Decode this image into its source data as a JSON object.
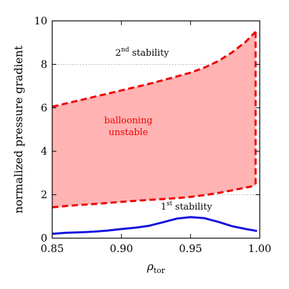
{
  "chart_data": {
    "type": "area",
    "xlabel": "ρ",
    "xlabel_sub": "tor",
    "ylabel": "normalized pressure gradient",
    "xlim": [
      0.85,
      1.0
    ],
    "ylim": [
      0,
      10
    ],
    "xticks": [
      "0.85",
      "0.90",
      "0.95",
      "1.00"
    ],
    "xtick_values": [
      0.85,
      0.9,
      0.95,
      1.0
    ],
    "yticks": [
      "0",
      "2",
      "4",
      "6",
      "8",
      "10"
    ],
    "ytick_values": [
      0,
      2,
      4,
      6,
      8,
      10
    ],
    "grid": "dotted horizontal",
    "series": [
      {
        "name": "upper boundary",
        "style": "dashed",
        "color": "#ee0000",
        "x": [
          0.85,
          0.86,
          0.87,
          0.88,
          0.89,
          0.9,
          0.91,
          0.92,
          0.93,
          0.94,
          0.95,
          0.96,
          0.97,
          0.98,
          0.99,
          0.997
        ],
        "y": [
          6.05,
          6.2,
          6.35,
          6.5,
          6.65,
          6.8,
          6.95,
          7.1,
          7.27,
          7.44,
          7.62,
          7.85,
          8.15,
          8.55,
          9.05,
          9.5
        ]
      },
      {
        "name": "lower boundary",
        "style": "dashed",
        "color": "#ee0000",
        "x": [
          0.85,
          0.86,
          0.87,
          0.88,
          0.89,
          0.9,
          0.91,
          0.92,
          0.93,
          0.94,
          0.95,
          0.96,
          0.97,
          0.98,
          0.99,
          0.997
        ],
        "y": [
          1.42,
          1.48,
          1.53,
          1.57,
          1.62,
          1.67,
          1.72,
          1.76,
          1.8,
          1.84,
          1.9,
          1.98,
          2.08,
          2.2,
          2.33,
          2.42
        ]
      },
      {
        "name": "1st stability boundary",
        "style": "solid",
        "color": "#1111dd",
        "x": [
          0.85,
          0.86,
          0.87,
          0.88,
          0.89,
          0.9,
          0.91,
          0.92,
          0.93,
          0.94,
          0.95,
          0.96,
          0.97,
          0.98,
          0.99,
          0.998
        ],
        "y": [
          0.2,
          0.25,
          0.27,
          0.3,
          0.35,
          0.42,
          0.48,
          0.57,
          0.73,
          0.9,
          0.97,
          0.92,
          0.75,
          0.55,
          0.42,
          0.33
        ]
      }
    ],
    "fill_color": "#ffb3b3",
    "annotations": [
      {
        "id": "second",
        "base": "2",
        "sup": "nd",
        "rest": " stability",
        "x": 0.915,
        "y": 8.4,
        "color": "#000000"
      },
      {
        "id": "ballooning",
        "line1": "ballooning",
        "line2": "unstable",
        "x": 0.905,
        "y": 5.0,
        "color": "#ee0000"
      },
      {
        "id": "first",
        "base": "1",
        "sup": "st",
        "rest": " stability",
        "x": 0.947,
        "y": 1.32,
        "color": "#000000"
      }
    ]
  }
}
